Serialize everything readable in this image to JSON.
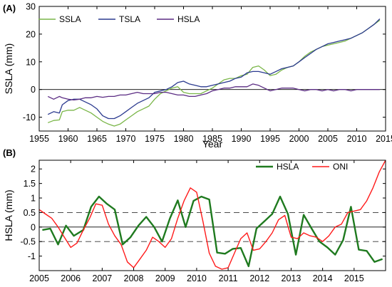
{
  "chart_data": [
    {
      "type": "line",
      "panel_label": "(A)",
      "xlabel": "Year",
      "ylabel": "SSLA (mm)",
      "xlim": [
        1955,
        2015
      ],
      "ylim": [
        -15,
        30
      ],
      "xticks": [
        1955,
        1960,
        1965,
        1970,
        1975,
        1980,
        1985,
        1990,
        1995,
        2000,
        2005,
        2010,
        2015
      ],
      "yticks": [
        -10,
        0,
        10,
        20,
        30
      ],
      "zero_line": 0,
      "legend": {
        "placement": "top-left",
        "orientation": "horizontal"
      },
      "series": [
        {
          "name": "SSLA",
          "color": "#7ab648",
          "x": [
            1956.5,
            1957.5,
            1958.5,
            1959,
            1960,
            1961,
            1962,
            1963,
            1964,
            1965,
            1966,
            1967,
            1968,
            1969,
            1970,
            1971,
            1972,
            1973,
            1974,
            1975,
            1976,
            1977,
            1978,
            1979,
            1980,
            1981,
            1982,
            1983,
            1984,
            1985,
            1986,
            1987,
            1988,
            1989,
            1990,
            1991,
            1992,
            1993,
            1994,
            1995,
            1996,
            1997,
            1998,
            1999,
            2000,
            2001,
            2002,
            2003,
            2004,
            2005,
            2006,
            2007,
            2008,
            2009,
            2010,
            2011,
            2012,
            2013,
            2014
          ],
          "y": [
            -12,
            -11.2,
            -11,
            -8,
            -7.5,
            -7.5,
            -6.5,
            -7.5,
            -8.5,
            -10,
            -11.5,
            -12.5,
            -13.2,
            -12.5,
            -11,
            -9.5,
            -8,
            -7,
            -6,
            -3.5,
            -1.5,
            -0.5,
            0.5,
            1,
            -1,
            -1.5,
            -1.5,
            -1.5,
            -0.5,
            0.5,
            2,
            3.5,
            4,
            4,
            5,
            5.5,
            8,
            8.5,
            7,
            5,
            5.5,
            7,
            8,
            8.5,
            10,
            12,
            13.5,
            14.5,
            15.5,
            16,
            16.5,
            17,
            17.5,
            18.5,
            19.5,
            20.5,
            22,
            23.5,
            25
          ]
        },
        {
          "name": "TSLA",
          "color": "#2b3a8f",
          "x": [
            1956.5,
            1957.5,
            1958.5,
            1959,
            1960,
            1961,
            1962,
            1963,
            1964,
            1965,
            1966,
            1967,
            1968,
            1969,
            1970,
            1971,
            1972,
            1973,
            1974,
            1975,
            1976,
            1977,
            1978,
            1979,
            1980,
            1981,
            1982,
            1983,
            1984,
            1985,
            1986,
            1987,
            1988,
            1989,
            1990,
            1991,
            1992,
            1993,
            1994,
            1995,
            1996,
            1997,
            1998,
            1999,
            2000,
            2001,
            2002,
            2003,
            2004,
            2005,
            2006,
            2007,
            2008,
            2009,
            2010,
            2011,
            2012,
            2013,
            2014
          ],
          "y": [
            -9,
            -8,
            -8.5,
            -5.5,
            -4,
            -3.5,
            -3.5,
            -4.5,
            -5.5,
            -7,
            -9.5,
            -10.5,
            -10.5,
            -9.5,
            -8,
            -6.5,
            -5,
            -4,
            -3,
            -1,
            -0.5,
            0,
            1,
            2.5,
            3,
            2,
            1.5,
            1,
            1,
            1.5,
            2,
            2.5,
            3,
            4,
            4.5,
            6,
            6.5,
            6.5,
            6,
            5.5,
            6.5,
            7.5,
            8,
            8.5,
            10,
            11.5,
            13,
            14.5,
            15.5,
            16.5,
            17,
            17.5,
            18,
            18.5,
            19.5,
            20.5,
            22,
            23.5,
            25.5
          ]
        },
        {
          "name": "HSLA",
          "color": "#5b2c83",
          "x": [
            1956.5,
            1957.5,
            1958.5,
            1959,
            1960,
            1961,
            1962,
            1963,
            1964,
            1965,
            1966,
            1967,
            1968,
            1969,
            1970,
            1971,
            1972,
            1973,
            1974,
            1975,
            1976,
            1977,
            1978,
            1979,
            1980,
            1981,
            1982,
            1983,
            1984,
            1985,
            1986,
            1987,
            1988,
            1989,
            1990,
            1991,
            1992,
            1993,
            1994,
            1995,
            1996,
            1997,
            1998,
            1999,
            2000,
            2001,
            2002,
            2003,
            2004,
            2005,
            2006,
            2007,
            2008,
            2009,
            2010,
            2011,
            2012,
            2013,
            2014
          ],
          "y": [
            -2.5,
            -3.5,
            -2.5,
            -3,
            -3.5,
            -3.8,
            -3.5,
            -3,
            -3,
            -2.5,
            -2.8,
            -2.5,
            -2.5,
            -2,
            -2,
            -1.5,
            -1,
            -1.5,
            -1.5,
            -1.5,
            -1,
            -1,
            -1.5,
            -2,
            -2,
            -2.5,
            -2.5,
            -2,
            -1.5,
            -0.5,
            0,
            0.5,
            0.5,
            1,
            1,
            1,
            2,
            1.5,
            0.5,
            -0.5,
            0,
            0.5,
            0.5,
            0.5,
            0,
            -0.5,
            0,
            0,
            -0.5,
            0,
            -0.5,
            0,
            0,
            -0.5,
            0,
            0,
            0,
            0,
            0
          ]
        }
      ]
    },
    {
      "type": "line",
      "panel_label": "(B)",
      "xlabel": "",
      "ylabel": "HSLA (mm)",
      "xlim": [
        2005,
        2016
      ],
      "ylim": [
        -1.5,
        2.3
      ],
      "xticks": [
        2005,
        2006,
        2007,
        2008,
        2009,
        2010,
        2011,
        2012,
        2013,
        2014,
        2015
      ],
      "yticks": [
        -1,
        -0.5,
        0,
        0.5,
        1,
        1.5,
        2
      ],
      "ytick_labels": [
        "-1",
        "-0.5",
        "0",
        "0.5",
        "1",
        "1.5",
        "2"
      ],
      "zero_line": 0,
      "dashed_lines": [
        0.5,
        -0.5
      ],
      "legend": {
        "placement": "top-right",
        "orientation": "horizontal"
      },
      "series": [
        {
          "name": "HSLA",
          "color": "#1f7a1f",
          "width": 2.4,
          "x": [
            2005.1,
            2005.35,
            2005.6,
            2005.85,
            2006.1,
            2006.4,
            2006.65,
            2006.9,
            2007.15,
            2007.4,
            2007.65,
            2007.9,
            2008.15,
            2008.4,
            2008.65,
            2008.9,
            2009.15,
            2009.4,
            2009.65,
            2009.9,
            2010.15,
            2010.4,
            2010.65,
            2010.9,
            2011.15,
            2011.4,
            2011.65,
            2011.9,
            2012.15,
            2012.4,
            2012.65,
            2012.9,
            2013.15,
            2013.4,
            2013.65,
            2013.9,
            2014.15,
            2014.4,
            2014.65,
            2014.9,
            2015.15,
            2015.4,
            2015.65,
            2015.9
          ],
          "y": [
            -0.1,
            -0.05,
            -0.6,
            0.05,
            -0.3,
            -0.1,
            0.7,
            1.05,
            0.8,
            0.6,
            -0.6,
            -0.35,
            0.05,
            0.35,
            0,
            -0.5,
            0.3,
            0.92,
            0,
            0.9,
            1.05,
            0.95,
            -0.88,
            -0.92,
            -0.75,
            -0.72,
            -1.35,
            -0.05,
            0.2,
            0.45,
            1.05,
            0.45,
            -0.95,
            0.42,
            -0.05,
            -0.5,
            -0.7,
            -0.95,
            -0.45,
            0.7,
            -0.78,
            -0.82,
            -1.2,
            -1.1
          ]
        },
        {
          "name": "ONI",
          "color": "#ff1a1a",
          "width": 1.4,
          "x": [
            2005,
            2005.2,
            2005.4,
            2005.6,
            2005.8,
            2006,
            2006.2,
            2006.4,
            2006.6,
            2006.8,
            2007,
            2007.2,
            2007.4,
            2007.6,
            2007.8,
            2008,
            2008.2,
            2008.4,
            2008.6,
            2008.8,
            2009,
            2009.2,
            2009.4,
            2009.6,
            2009.8,
            2010,
            2010.2,
            2010.4,
            2010.6,
            2010.8,
            2011,
            2011.2,
            2011.4,
            2011.6,
            2011.8,
            2012,
            2012.2,
            2012.4,
            2012.6,
            2012.8,
            2013,
            2013.2,
            2013.4,
            2013.6,
            2013.8,
            2014,
            2014.2,
            2014.4,
            2014.6,
            2014.8,
            2015,
            2015.2,
            2015.4,
            2015.6,
            2015.8,
            2016
          ],
          "y": [
            0.6,
            0.45,
            0.3,
            0,
            -0.35,
            -0.7,
            -0.55,
            -0.1,
            0.3,
            0.8,
            0.75,
            0.1,
            -0.3,
            -0.6,
            -1.2,
            -1.4,
            -1.1,
            -0.8,
            -0.35,
            -0.5,
            -0.7,
            -0.4,
            0.3,
            0.9,
            1.35,
            1.2,
            0.2,
            -0.9,
            -1.35,
            -1.45,
            -1.4,
            -0.9,
            -0.4,
            -0.2,
            -0.8,
            -0.75,
            -0.5,
            -0.2,
            0.25,
            0.4,
            -0.35,
            -0.4,
            -0.2,
            -0.3,
            -0.35,
            -0.5,
            -0.3,
            0,
            0.1,
            0.5,
            0.55,
            0.6,
            0.9,
            1.35,
            1.9,
            2.3
          ]
        }
      ]
    }
  ]
}
